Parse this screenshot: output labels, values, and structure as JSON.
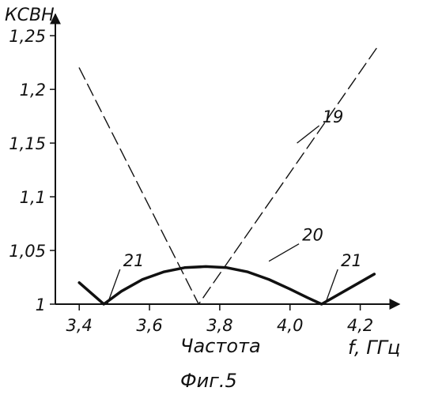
{
  "chart_data": {
    "type": "line",
    "ylabel": "КСВН",
    "xlabel": "Частота",
    "x_unit_label": "f, ГГц",
    "caption": "Фиг.5",
    "xlim": [
      3.4,
      4.25
    ],
    "ylim": [
      1.0,
      1.26
    ],
    "x_ticks": [
      3.4,
      3.6,
      3.8,
      4.0,
      4.2
    ],
    "x_tick_labels": [
      "3,4",
      "3,6",
      "3,8",
      "4,0",
      "4,2"
    ],
    "y_ticks": [
      1.0,
      1.05,
      1.1,
      1.15,
      1.2,
      1.25
    ],
    "y_tick_labels": [
      "1",
      "1,05",
      "1,1",
      "1,15",
      "1,2",
      "1,25"
    ],
    "series": [
      {
        "style": "dashed",
        "color": "#111111",
        "x": [
          3.4,
          3.74,
          4.25
        ],
        "y": [
          1.22,
          1.0,
          1.24
        ]
      },
      {
        "style": "solid-thick",
        "color": "#111111",
        "x": [
          3.4,
          3.47,
          3.52,
          3.58,
          3.64,
          3.7,
          3.76,
          3.82,
          3.88,
          3.94,
          4.0,
          4.05,
          4.09,
          4.24
        ],
        "y": [
          1.02,
          1.0,
          1.012,
          1.023,
          1.03,
          1.034,
          1.035,
          1.034,
          1.03,
          1.023,
          1.014,
          1.006,
          1.0,
          1.028
        ]
      }
    ],
    "annotations": [
      {
        "text": "19",
        "series_index": 0,
        "x": 4.02,
        "y": 1.15
      },
      {
        "text": "20",
        "series_index": 1,
        "x": 3.94,
        "y": 1.04
      },
      {
        "text": "21",
        "series_index": 1,
        "x": 3.48,
        "y": 1.0
      },
      {
        "text": "21",
        "series_index": 1,
        "x": 4.1,
        "y": 1.0
      }
    ],
    "grid": false,
    "legend": "none"
  }
}
